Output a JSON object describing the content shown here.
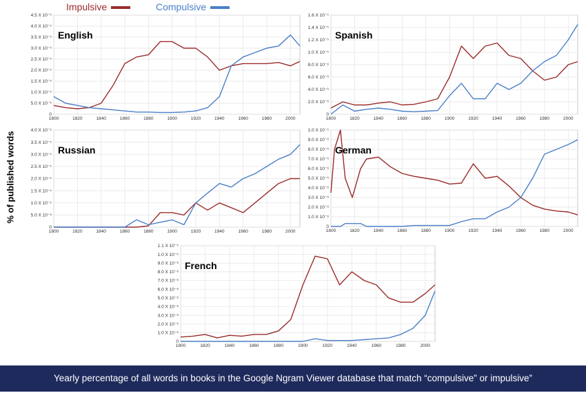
{
  "legend": {
    "impulsive_label": "Impulsive",
    "compulsive_label": "Compulsive",
    "impulsive_color": "#9a2b2b",
    "compulsive_color": "#4a7fc8"
  },
  "ylabel": "% of published words",
  "caption": "Yearly  percentage of all words in books in the Google Ngram Viewer database that match “compulsive” or impulsive”",
  "chart_data": [
    {
      "type": "line",
      "title": "English",
      "x": [
        1800,
        1810,
        1820,
        1830,
        1840,
        1850,
        1860,
        1870,
        1880,
        1890,
        1900,
        1910,
        1920,
        1930,
        1940,
        1950,
        1960,
        1970,
        1980,
        1990,
        2000,
        2008
      ],
      "ylim": [
        0,
        4.5e-05
      ],
      "yticks": [
        "0",
        "5.0 X 10⁻⁶",
        "1.0 X 10⁻⁵",
        "1.5 X 10⁻⁵",
        "2.0 X 10⁻⁵",
        "2.5 X 10⁻⁵",
        "3.0 X 10⁻⁵",
        "3.5 X 10⁻⁵",
        "4.0 X 10⁻⁵",
        "4.5 X 10⁻⁵"
      ],
      "xticks": [
        1800,
        1820,
        1840,
        1860,
        1880,
        1900,
        1920,
        1940,
        1960,
        1980,
        2000
      ],
      "series": [
        {
          "name": "Impulsive",
          "values": [
            4e-06,
            3e-06,
            2.5e-06,
            3e-06,
            5e-06,
            1.3e-05,
            2.3e-05,
            2.6e-05,
            2.7e-05,
            3.3e-05,
            3.3e-05,
            3e-05,
            3e-05,
            2.6e-05,
            2e-05,
            2.2e-05,
            2.3e-05,
            2.3e-05,
            2.3e-05,
            2.35e-05,
            2.2e-05,
            2.4e-05
          ]
        },
        {
          "name": "Compulsive",
          "values": [
            8e-06,
            5e-06,
            4e-06,
            3e-06,
            2.5e-06,
            2e-06,
            1.5e-06,
            1e-06,
            1e-06,
            8e-07,
            8e-07,
            1e-06,
            1.5e-06,
            3e-06,
            8e-06,
            2.2e-05,
            2.6e-05,
            2.8e-05,
            3e-05,
            3.1e-05,
            3.6e-05,
            3.1e-05
          ]
        }
      ]
    },
    {
      "type": "line",
      "title": "Spanish",
      "x": [
        1800,
        1810,
        1820,
        1830,
        1840,
        1850,
        1860,
        1870,
        1880,
        1890,
        1900,
        1910,
        1920,
        1930,
        1940,
        1950,
        1960,
        1970,
        1980,
        1990,
        2000,
        2008
      ],
      "ylim": [
        0,
        1.6e-05
      ],
      "yticks": [
        "0",
        "2.0 X 10⁻⁶",
        "4.0 X 10⁻⁶",
        "6.0 X 10⁻⁶",
        "8.0 X 10⁻⁶",
        "1.0 X 10⁻⁵",
        "1.2 X 10⁻⁵",
        "1.4 X 10⁻⁵",
        "1.6 X 10⁻⁵"
      ],
      "xticks": [
        1800,
        1820,
        1840,
        1860,
        1880,
        1900,
        1920,
        1940,
        1960,
        1980,
        2000
      ],
      "series": [
        {
          "name": "Impulsive",
          "values": [
            1e-06,
            2e-06,
            1.5e-06,
            1.5e-06,
            1.8e-06,
            2e-06,
            1.5e-06,
            1.6e-06,
            2e-06,
            2.5e-06,
            6e-06,
            1.1e-05,
            9e-06,
            1.1e-05,
            1.15e-05,
            9.5e-06,
            9e-06,
            7e-06,
            5.5e-06,
            6e-06,
            8e-06,
            8.5e-06
          ]
        },
        {
          "name": "Compulsive",
          "values": [
            0,
            1.5e-06,
            5e-07,
            8e-07,
            1e-06,
            8e-07,
            5e-07,
            4e-07,
            5e-07,
            6e-07,
            3e-06,
            5e-06,
            2.5e-06,
            2.5e-06,
            5e-06,
            4e-06,
            5e-06,
            7e-06,
            8.5e-06,
            9.5e-06,
            1.2e-05,
            1.45e-05
          ]
        }
      ]
    },
    {
      "type": "line",
      "title": "Russian",
      "x": [
        1800,
        1810,
        1820,
        1830,
        1840,
        1850,
        1860,
        1870,
        1880,
        1890,
        1900,
        1910,
        1920,
        1930,
        1940,
        1950,
        1960,
        1970,
        1980,
        1990,
        2000,
        2008
      ],
      "ylim": [
        0,
        4e-05
      ],
      "yticks": [
        "0",
        "5.0 X 10⁻⁶",
        "1.0 X 10⁻⁵",
        "1.5 X 10⁻⁵",
        "2.0 X 10⁻⁵",
        "2.5 X 10⁻⁵",
        "3.0 X 10⁻⁵",
        "3.5 X 10⁻⁵",
        "4.0 X 10⁻⁵"
      ],
      "xticks": [
        1800,
        1820,
        1840,
        1860,
        1880,
        1900,
        1920,
        1940,
        1960,
        1980,
        2000
      ],
      "series": [
        {
          "name": "Impulsive",
          "values": [
            0,
            0,
            0,
            0,
            0,
            0,
            0,
            0,
            5e-07,
            6e-06,
            6e-06,
            5e-06,
            1e-05,
            7e-06,
            1e-05,
            8e-06,
            6e-06,
            1e-05,
            1.4e-05,
            1.8e-05,
            2e-05,
            2e-05
          ]
        },
        {
          "name": "Compulsive",
          "values": [
            0,
            0,
            0,
            0,
            0,
            0,
            0,
            3e-06,
            1e-06,
            2e-06,
            3e-06,
            1e-06,
            1e-05,
            1.4e-05,
            1.8e-05,
            1.65e-05,
            2e-05,
            2.2e-05,
            2.5e-05,
            2.8e-05,
            3e-05,
            3.4e-05
          ]
        }
      ]
    },
    {
      "type": "line",
      "title": "German",
      "x": [
        1800,
        1803,
        1808,
        1812,
        1818,
        1825,
        1830,
        1840,
        1850,
        1860,
        1870,
        1880,
        1890,
        1900,
        1910,
        1920,
        1930,
        1940,
        1950,
        1960,
        1970,
        1980,
        1990,
        2000,
        2008
      ],
      "ylim": [
        0,
        1e-05
      ],
      "yticks": [
        "0",
        "1.0 X 10⁻⁶",
        "2.0 X 10⁻⁶",
        "3.0 X 10⁻⁶",
        "4.0 X 10⁻⁶",
        "5.0 X 10⁻⁶",
        "6.0 X 10⁻⁶",
        "7.0 X 10⁻⁶",
        "8.0 X 10⁻⁶",
        "9.0 X 10⁻⁶",
        "1.0 X 10⁻⁵"
      ],
      "xticks": [
        1800,
        1820,
        1840,
        1860,
        1880,
        1900,
        1920,
        1940,
        1960,
        1980,
        2000
      ],
      "series": [
        {
          "name": "Impulsive",
          "values": [
            3.5e-06,
            8e-06,
            1e-05,
            5e-06,
            3e-06,
            6e-06,
            7e-06,
            7.2e-06,
            6.2e-06,
            5.5e-06,
            5.2e-06,
            5e-06,
            4.8e-06,
            4.4e-06,
            4.5e-06,
            6.5e-06,
            5e-06,
            5.2e-06,
            4.2e-06,
            3e-06,
            2.2e-06,
            1.8e-06,
            1.6e-06,
            1.5e-06,
            1.2e-06
          ]
        },
        {
          "name": "Compulsive",
          "values": [
            0,
            0,
            0,
            3e-07,
            3e-07,
            3e-07,
            0,
            0,
            0,
            0,
            1e-07,
            1e-07,
            1e-07,
            1e-07,
            5e-07,
            8e-07,
            8e-07,
            1.5e-06,
            2e-06,
            3e-06,
            5e-06,
            7.5e-06,
            8e-06,
            8.5e-06,
            9e-06
          ]
        }
      ]
    },
    {
      "type": "line",
      "title": "French",
      "x": [
        1800,
        1810,
        1820,
        1830,
        1840,
        1850,
        1860,
        1870,
        1880,
        1890,
        1900,
        1910,
        1920,
        1930,
        1940,
        1950,
        1960,
        1970,
        1980,
        1990,
        2000,
        2008
      ],
      "ylim": [
        0,
        1.1e-05
      ],
      "yticks": [
        "0",
        "1.0 X 10⁻⁶",
        "2.0 X 10⁻⁶",
        "3.0 X 10⁻⁶",
        "4.0 X 10⁻⁶",
        "5.0 X 10⁻⁶",
        "6.0 X 10⁻⁶",
        "7.0 X 10⁻⁶",
        "8.0 X 10⁻⁶",
        "9.0 X 10⁻⁶",
        "1.0 X 10⁻⁵",
        "1.1 X 10⁻⁵"
      ],
      "xticks": [
        1800,
        1820,
        1840,
        1860,
        1880,
        1900,
        1920,
        1940,
        1960,
        1980,
        2000
      ],
      "series": [
        {
          "name": "Impulsive",
          "values": [
            5e-07,
            6e-07,
            8e-07,
            4e-07,
            7e-07,
            6e-07,
            8e-07,
            8e-07,
            1.2e-06,
            2.5e-06,
            6.5e-06,
            9.8e-06,
            9.5e-06,
            6.5e-06,
            8e-06,
            7e-06,
            6.5e-06,
            5e-06,
            4.5e-06,
            4.5e-06,
            5.5e-06,
            6.5e-06
          ]
        },
        {
          "name": "Compulsive",
          "values": [
            0,
            0,
            0,
            0,
            0,
            0,
            0,
            0,
            0,
            0,
            0,
            3e-07,
            1e-07,
            1e-07,
            1e-07,
            2e-07,
            3e-07,
            4e-07,
            8e-07,
            1.5e-06,
            3e-06,
            5.8e-06
          ]
        }
      ]
    }
  ]
}
